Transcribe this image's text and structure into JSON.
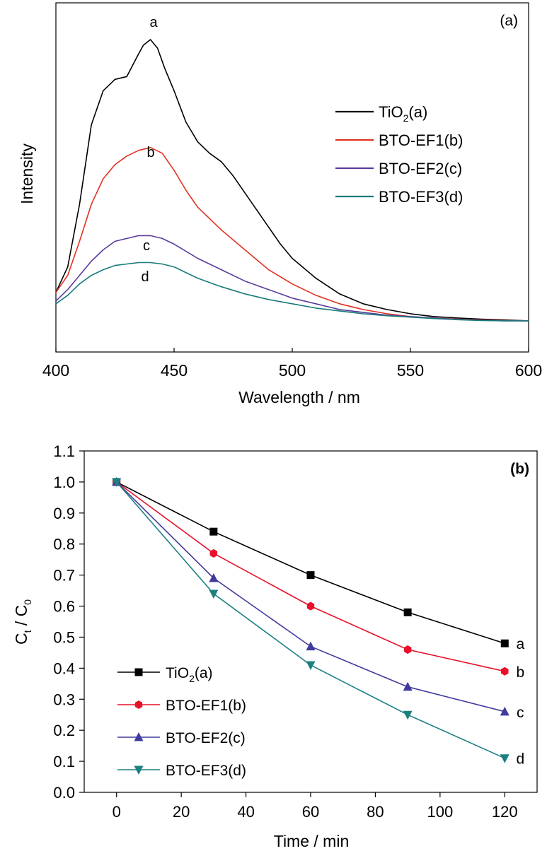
{
  "chart_data": [
    {
      "type": "line",
      "panel_label": "(a)",
      "xlabel": "Wavelength / nm",
      "ylabel": "Intensity",
      "xlim": [
        400,
        600
      ],
      "ylim": [
        0,
        1.1
      ],
      "xticks": [
        "400",
        "450",
        "500",
        "550",
        "600"
      ],
      "yticks_shown": false,
      "grid": false,
      "legend_position": "right",
      "series": [
        {
          "name": "TiO2(a)",
          "legend_label": "TiO",
          "legend_sub": "2",
          "legend_suffix": "(a)",
          "curve_label": "a",
          "color": "#000000",
          "x": [
            400,
            405,
            410,
            415,
            420,
            425,
            430,
            435,
            437,
            440,
            443,
            446,
            450,
            455,
            460,
            465,
            470,
            475,
            480,
            485,
            490,
            495,
            500,
            510,
            520,
            530,
            540,
            550,
            560,
            570,
            580,
            590,
            600
          ],
          "y": [
            0.13,
            0.22,
            0.44,
            0.72,
            0.84,
            0.88,
            0.89,
            0.97,
            1.0,
            1.02,
            0.99,
            0.92,
            0.84,
            0.73,
            0.66,
            0.62,
            0.59,
            0.54,
            0.48,
            0.42,
            0.36,
            0.3,
            0.25,
            0.18,
            0.125,
            0.09,
            0.07,
            0.055,
            0.045,
            0.04,
            0.036,
            0.033,
            0.03
          ]
        },
        {
          "name": "BTO-EF1(b)",
          "legend_label": "BTO-EF1(b)",
          "curve_label": "b",
          "color": "#e0311f",
          "x": [
            400,
            405,
            410,
            415,
            420,
            425,
            430,
            435,
            440,
            445,
            450,
            455,
            460,
            465,
            470,
            480,
            490,
            500,
            510,
            520,
            530,
            540,
            550,
            560,
            570,
            580,
            590,
            600
          ],
          "y": [
            0.13,
            0.19,
            0.31,
            0.44,
            0.53,
            0.58,
            0.61,
            0.63,
            0.64,
            0.62,
            0.56,
            0.49,
            0.43,
            0.39,
            0.35,
            0.28,
            0.21,
            0.16,
            0.12,
            0.09,
            0.07,
            0.055,
            0.045,
            0.04,
            0.036,
            0.033,
            0.031,
            0.03
          ]
        },
        {
          "name": "BTO-EF2(c)",
          "legend_label": "BTO-EF2(c)",
          "curve_label": "c",
          "color": "#5a3aa0",
          "x": [
            400,
            405,
            410,
            415,
            420,
            425,
            430,
            435,
            440,
            445,
            450,
            460,
            470,
            480,
            490,
            500,
            510,
            520,
            530,
            540,
            550,
            560,
            570,
            580,
            590,
            600
          ],
          "y": [
            0.1,
            0.14,
            0.19,
            0.24,
            0.28,
            0.31,
            0.32,
            0.33,
            0.33,
            0.32,
            0.3,
            0.25,
            0.21,
            0.17,
            0.14,
            0.11,
            0.09,
            0.07,
            0.06,
            0.05,
            0.045,
            0.04,
            0.035,
            0.032,
            0.03,
            0.03
          ]
        },
        {
          "name": "BTO-EF3(d)",
          "legend_label": "BTO-EF3(d)",
          "curve_label": "d",
          "color": "#1a7a7a",
          "x": [
            400,
            405,
            410,
            415,
            420,
            425,
            430,
            435,
            440,
            445,
            450,
            460,
            470,
            480,
            490,
            500,
            510,
            520,
            530,
            540,
            550,
            560,
            570,
            580,
            590,
            600
          ],
          "y": [
            0.09,
            0.12,
            0.16,
            0.19,
            0.21,
            0.225,
            0.23,
            0.235,
            0.235,
            0.23,
            0.22,
            0.18,
            0.15,
            0.125,
            0.105,
            0.09,
            0.075,
            0.065,
            0.055,
            0.048,
            0.043,
            0.038,
            0.034,
            0.031,
            0.03,
            0.03
          ]
        }
      ]
    },
    {
      "type": "line",
      "panel_label": "(b)",
      "xlabel": "Time / min",
      "ylabel_main": "C",
      "ylabel_sub1": "t",
      "ylabel_sep": " / C",
      "ylabel_sub2": "0",
      "xlim": [
        -10,
        130
      ],
      "ylim": [
        0,
        1.1
      ],
      "xticks": [
        0,
        20,
        40,
        60,
        80,
        100,
        120
      ],
      "yticks": [
        "0.0",
        "0.1",
        "0.2",
        "0.3",
        "0.4",
        "0.5",
        "0.6",
        "0.7",
        "0.8",
        "0.9",
        "1.0",
        "1.1"
      ],
      "grid": false,
      "legend_position": "bottom-left",
      "series": [
        {
          "name": "TiO2(a)",
          "legend_label": "TiO",
          "legend_sub": "2",
          "legend_suffix": "(a)",
          "end_label": "a",
          "color": "#000000",
          "marker": "square",
          "x": [
            0,
            30,
            60,
            90,
            120
          ],
          "y": [
            1.0,
            0.84,
            0.7,
            0.58,
            0.48
          ]
        },
        {
          "name": "BTO-EF1(b)",
          "legend_label": "BTO-EF1(b)",
          "end_label": "b",
          "color": "#e8102a",
          "marker": "hexagon",
          "x": [
            0,
            30,
            60,
            90,
            120
          ],
          "y": [
            1.0,
            0.77,
            0.6,
            0.46,
            0.39
          ]
        },
        {
          "name": "BTO-EF2(c)",
          "legend_label": "BTO-EF2(c)",
          "end_label": "c",
          "color": "#3f3a9c",
          "marker": "triangle-up",
          "x": [
            0,
            30,
            60,
            90,
            120
          ],
          "y": [
            1.0,
            0.69,
            0.47,
            0.34,
            0.26
          ]
        },
        {
          "name": "BTO-EF3(d)",
          "legend_label": "BTO-EF3(d)",
          "end_label": "d",
          "color": "#1c8080",
          "marker": "triangle-down",
          "x": [
            0,
            30,
            60,
            90,
            120
          ],
          "y": [
            1.0,
            0.64,
            0.41,
            0.25,
            0.11
          ]
        }
      ]
    }
  ]
}
